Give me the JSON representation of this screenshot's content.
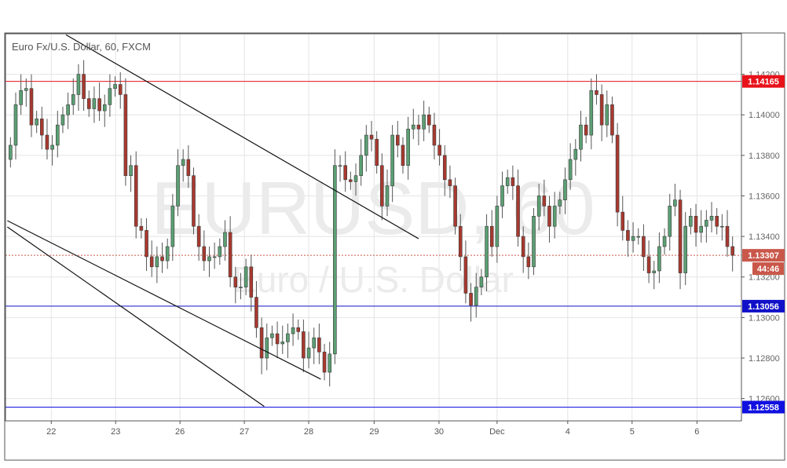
{
  "chart_data": {
    "type": "candlestick",
    "title": "Euro Fx/U.S. Dollar, 60, FXCM",
    "watermark": {
      "symbol": "EURUSD, 60",
      "name": "Euro / U.S. Dollar"
    },
    "ylim": [
      1.1249,
      1.144
    ],
    "y_ticks": [
      "1.12600",
      "1.12800",
      "1.13000",
      "1.13200",
      "1.13400",
      "1.13600",
      "1.13800",
      "1.14000",
      "1.14200"
    ],
    "x_ticks": [
      {
        "label": "22",
        "index": 7.8
      },
      {
        "label": "23",
        "index": 20.1
      },
      {
        "label": "26",
        "index": 32.4
      },
      {
        "label": "27",
        "index": 44.7
      },
      {
        "label": "28",
        "index": 57
      },
      {
        "label": "29",
        "index": 69.5
      },
      {
        "label": "30",
        "index": 81.9
      },
      {
        "label": "Dec",
        "index": 93
      },
      {
        "label": "4",
        "index": 106.5
      },
      {
        "label": "5",
        "index": 118.8
      },
      {
        "label": "6",
        "index": 131.2
      }
    ],
    "grid": true,
    "colors": {
      "up": "#5b9f73",
      "down": "#a8392f",
      "outline": "#3a3a3a"
    },
    "open_first": 1.1378,
    "closes": [
      1.1385,
      1.1405,
      1.1412,
      1.1413,
      1.1395,
      1.1398,
      1.139,
      1.1383,
      1.1385,
      1.1395,
      1.14,
      1.1405,
      1.141,
      1.142,
      1.1408,
      1.1403,
      1.1408,
      1.1402,
      1.1405,
      1.1413,
      1.1415,
      1.141,
      1.137,
      1.1375,
      1.1345,
      1.1343,
      1.133,
      1.1325,
      1.133,
      1.1328,
      1.1335,
      1.1355,
      1.1375,
      1.1378,
      1.137,
      1.1345,
      1.1335,
      1.1328,
      1.133,
      1.133,
      1.1335,
      1.1342,
      1.132,
      1.1315,
      1.1315,
      1.1325,
      1.131,
      1.1295,
      1.128,
      1.129,
      1.1292,
      1.1287,
      1.1288,
      1.1292,
      1.1295,
      1.1293,
      1.128,
      1.1285,
      1.129,
      1.1283,
      1.1273,
      1.1282,
      1.1375,
      1.1375,
      1.1368,
      1.1367,
      1.137,
      1.138,
      1.139,
      1.1388,
      1.1375,
      1.1355,
      1.1365,
      1.139,
      1.1385,
      1.1375,
      1.1393,
      1.1395,
      1.1393,
      1.14,
      1.1395,
      1.1385,
      1.138,
      1.1368,
      1.1365,
      1.1345,
      1.133,
      1.1312,
      1.1306,
      1.1315,
      1.132,
      1.1345,
      1.1335,
      1.1355,
      1.1365,
      1.1369,
      1.1365,
      1.134,
      1.133,
      1.1325,
      1.135,
      1.136,
      1.1355,
      1.1345,
      1.1355,
      1.1358,
      1.1368,
      1.1378,
      1.1383,
      1.1395,
      1.139,
      1.1412,
      1.141,
      1.1395,
      1.1405,
      1.139,
      1.1352,
      1.1343,
      1.1338,
      1.134,
      1.134,
      1.133,
      1.1322,
      1.1323,
      1.1335,
      1.134,
      1.1355,
      1.1358,
      1.1322,
      1.1345,
      1.135,
      1.1342,
      1.1345,
      1.1348,
      1.135,
      1.1345,
      1.1345,
      1.1335,
      1.13307
    ],
    "levels": [
      {
        "price": 1.14165,
        "label": "1.14165",
        "color": "#e8121a",
        "style": "solid"
      },
      {
        "price": 1.13056,
        "label": "1.13056",
        "color": "#1010c8",
        "style": "solid"
      },
      {
        "price": 1.12558,
        "label": "1.12558",
        "color": "#1010e0",
        "style": "solid"
      },
      {
        "price": 1.13307,
        "label": "1.13307",
        "color": "#c9584a",
        "style": "dotted",
        "countdown": "44:46"
      }
    ],
    "trendlines": [
      {
        "from": [
          10.6,
          1.14395
        ],
        "to": [
          78,
          1.13389
        ]
      },
      {
        "from": [
          -0.6,
          1.13478
        ],
        "to": [
          59.3,
          1.12696
        ]
      },
      {
        "from": [
          -0.6,
          1.13447
        ],
        "to": [
          48.5,
          1.12561
        ]
      }
    ]
  }
}
